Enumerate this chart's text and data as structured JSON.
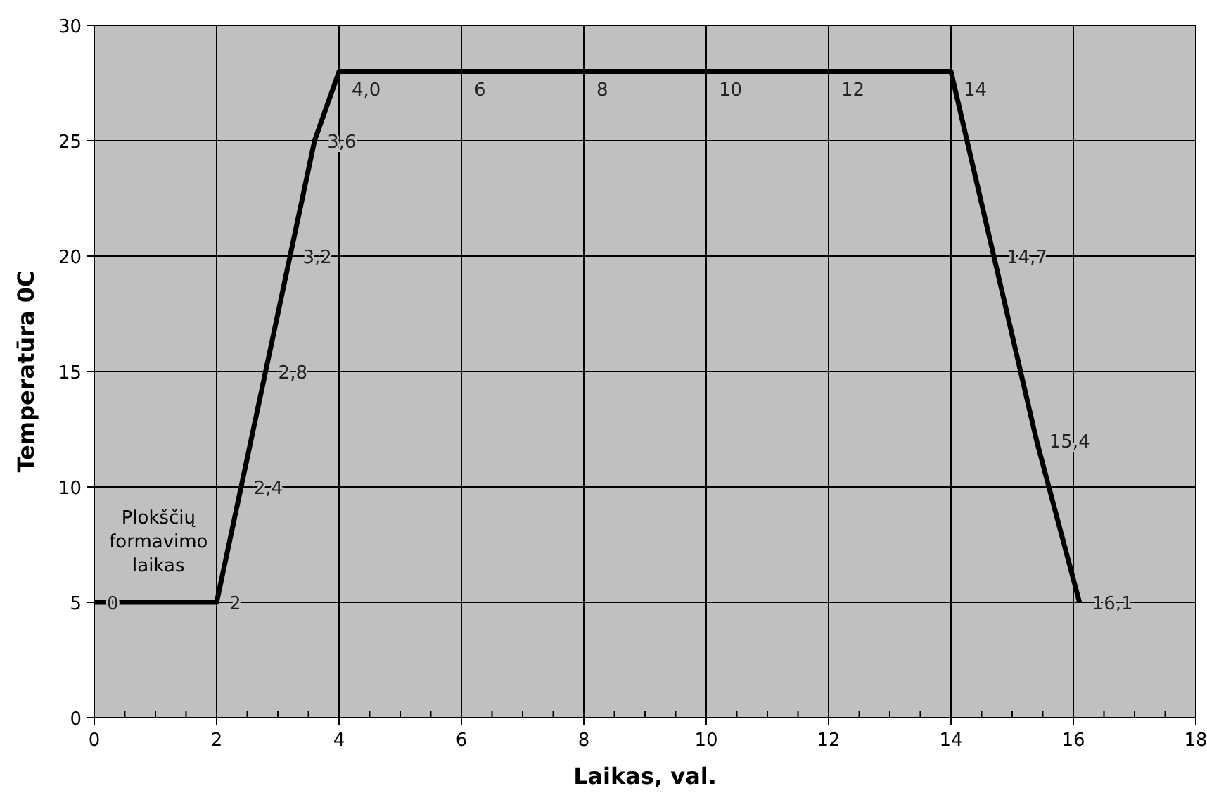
{
  "chart_data": {
    "type": "line",
    "xlabel": "Laikas, val.",
    "ylabel": "Temperatūra 0C",
    "annotations": [
      "Plokščių formavimo laikas",
      {
        "text": "0",
        "x": 0,
        "y": 5
      },
      {
        "text": "2",
        "x": 2,
        "y": 5
      },
      {
        "text": "2,4",
        "x": 2.4,
        "y": 10
      },
      {
        "text": "2,8",
        "x": 2.8,
        "y": 15
      },
      {
        "text": "3,2",
        "x": 3.2,
        "y": 20
      },
      {
        "text": "3,6",
        "x": 3.6,
        "y": 25
      },
      {
        "text": "4,0",
        "x": 4,
        "y": 28
      },
      {
        "text": "6",
        "x": 6,
        "y": 28
      },
      {
        "text": "8",
        "x": 8,
        "y": 28
      },
      {
        "text": "10",
        "x": 10,
        "y": 28
      },
      {
        "text": "12",
        "x": 12,
        "y": 28
      },
      {
        "text": "14",
        "x": 14,
        "y": 28
      },
      {
        "text": "14,7",
        "x": 14.7,
        "y": 20
      },
      {
        "text": "15,4",
        "x": 15.4,
        "y": 12
      },
      {
        "text": "16,1",
        "x": 16.1,
        "y": 5
      }
    ],
    "series": [
      {
        "color": "#000000",
        "x": [
          0,
          2,
          2.4,
          2.8,
          3.2,
          3.6,
          4,
          6,
          8,
          10,
          12,
          14,
          14.7,
          15.4,
          16.1
        ],
        "values": [
          5,
          5,
          10,
          15,
          20,
          25,
          28,
          28,
          28,
          28,
          28,
          28,
          20,
          12,
          5
        ]
      }
    ],
    "xlim": [
      0,
      18
    ],
    "xticks": [
      0,
      2,
      4,
      6,
      8,
      10,
      12,
      14,
      16,
      18
    ],
    "ylim": [
      0,
      30
    ],
    "yticks": [
      0,
      5,
      10,
      15,
      20,
      25,
      30
    ],
    "grid": true,
    "marker": "none",
    "line_style": "solid"
  }
}
